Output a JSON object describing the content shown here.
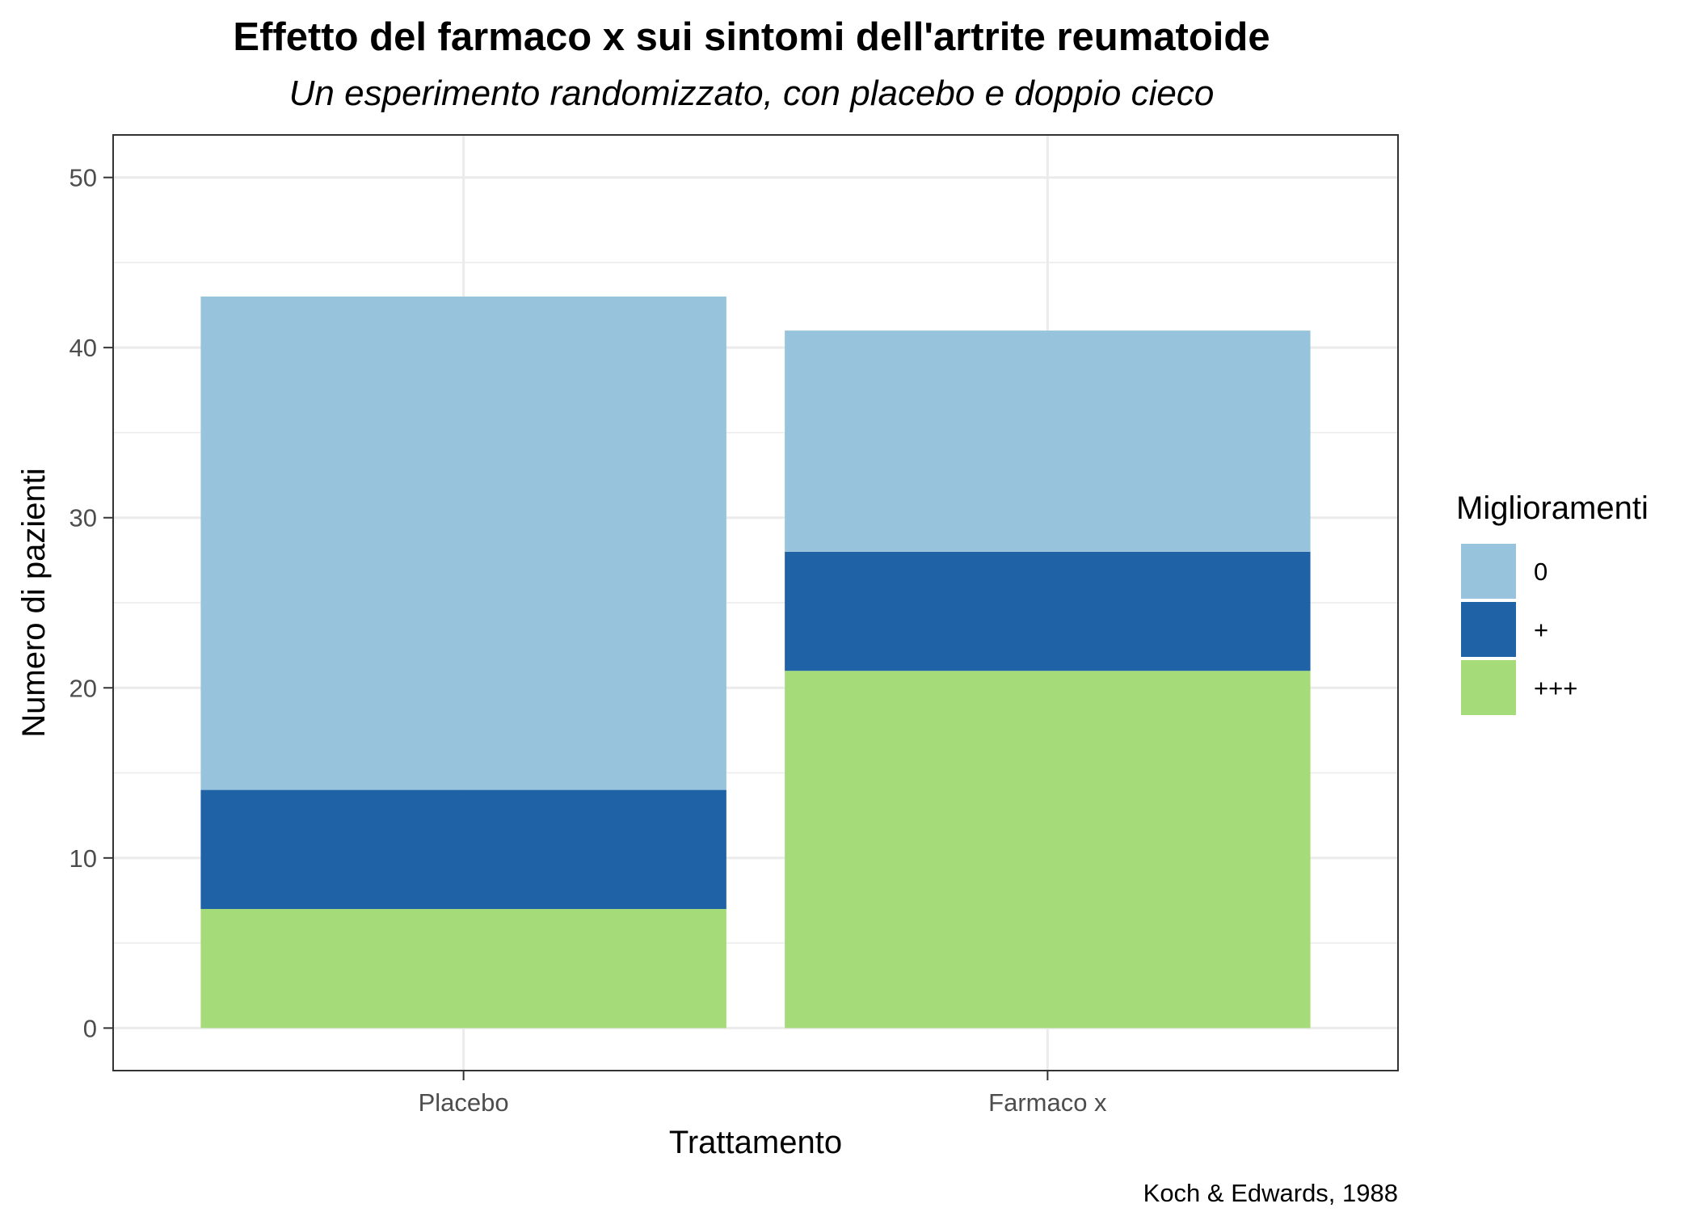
{
  "chart_data": {
    "type": "bar",
    "stacked": true,
    "title": "Effetto del farmaco x sui sintomi dell'artrite reumatoide",
    "subtitle": "Un esperimento randomizzato, con placebo e doppio cieco",
    "xlabel": "Trattamento",
    "ylabel": "Numero di pazienti",
    "caption": "Koch & Edwards, 1988",
    "categories": [
      "Placebo",
      "Farmaco x"
    ],
    "ylim": [
      -2.5,
      52.5
    ],
    "yticks": [
      0,
      10,
      20,
      30,
      40,
      50
    ],
    "grid": true,
    "legend": {
      "title": "Miglioramenti",
      "position": "right"
    },
    "series": [
      {
        "name": "+++",
        "color": "#a6db79",
        "values": [
          7,
          21
        ]
      },
      {
        "name": "+",
        "color": "#1f63a6",
        "values": [
          7,
          7
        ]
      },
      {
        "name": "0",
        "color": "#97c3dc",
        "values": [
          29,
          13
        ]
      }
    ],
    "legend_order": [
      "0",
      "+",
      "+++"
    ]
  }
}
